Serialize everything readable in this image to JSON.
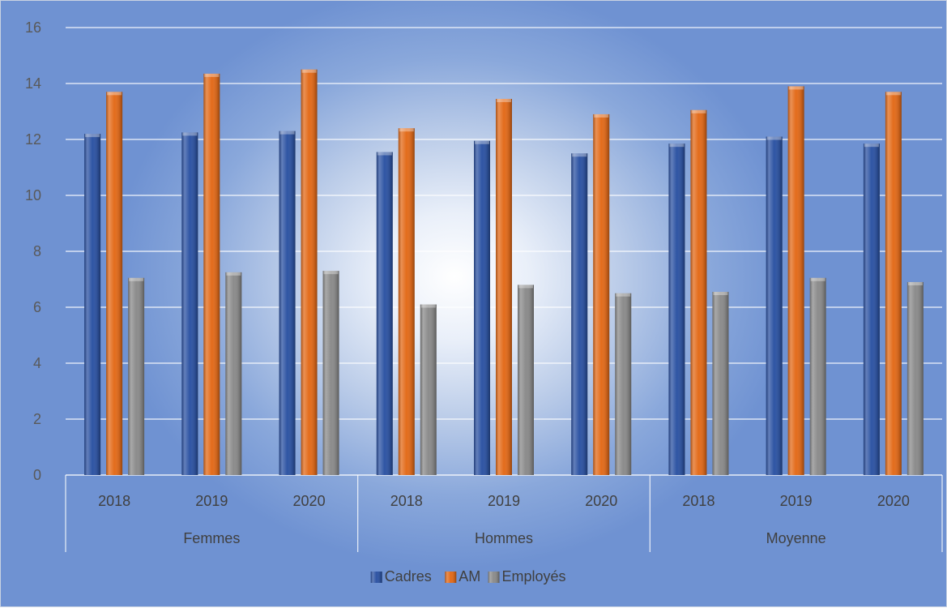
{
  "chart_data": {
    "type": "bar",
    "title": "",
    "xlabel": "",
    "ylabel": "",
    "ylim": [
      0,
      16
    ],
    "yticks": [
      0,
      2,
      4,
      6,
      8,
      10,
      12,
      14,
      16
    ],
    "grid": true,
    "legend_position": "bottom",
    "groups": [
      {
        "name": "Femmes",
        "categories": [
          "2018",
          "2019",
          "2020"
        ]
      },
      {
        "name": "Hommes",
        "categories": [
          "2018",
          "2019",
          "2020"
        ]
      },
      {
        "name": "Moyenne",
        "categories": [
          "2018",
          "2019",
          "2020"
        ]
      }
    ],
    "series": [
      {
        "name": "Cadres",
        "color": "#2f55a4",
        "values": [
          12.2,
          12.25,
          12.3,
          11.55,
          11.95,
          11.5,
          11.85,
          12.1,
          11.85
        ]
      },
      {
        "name": "AM",
        "color": "#e36c1c",
        "values": [
          13.7,
          14.35,
          14.5,
          12.4,
          13.45,
          12.9,
          13.05,
          13.9,
          13.7
        ]
      },
      {
        "name": "Employés",
        "color": "#8c8c8c",
        "values": [
          7.05,
          7.25,
          7.3,
          6.1,
          6.8,
          6.5,
          6.55,
          7.05,
          6.9
        ]
      }
    ]
  }
}
